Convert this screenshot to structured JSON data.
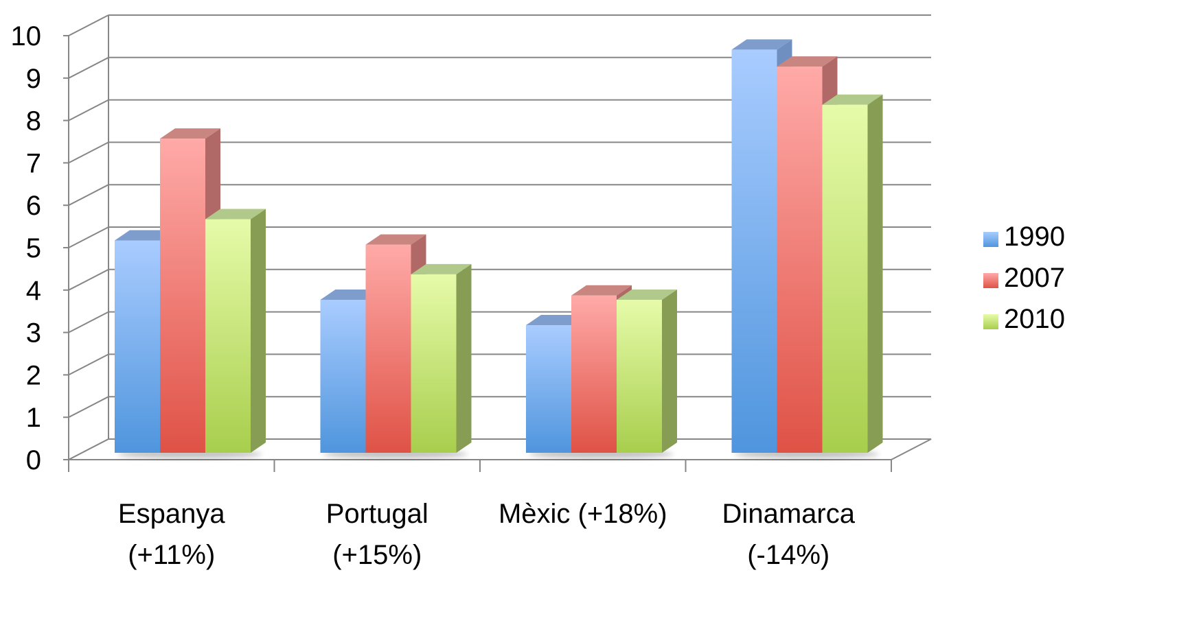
{
  "chart_data": {
    "type": "bar",
    "title": "",
    "xlabel": "",
    "ylabel": "",
    "ylim": [
      0,
      10
    ],
    "yticks": [
      "0",
      "1",
      "2",
      "3",
      "4",
      "5",
      "6",
      "7",
      "8",
      "9",
      "10"
    ],
    "categories": [
      [
        "Espanya",
        "(+11%)"
      ],
      [
        "Portugal",
        "(+15%)"
      ],
      [
        "Mèxic (+18%)"
      ],
      [
        "Dinamarca",
        "(-14%)"
      ]
    ],
    "series": [
      {
        "name": "1990",
        "values": [
          5.3,
          3.9,
          3.3,
          9.8
        ]
      },
      {
        "name": "2007",
        "values": [
          7.7,
          5.2,
          4.0,
          9.4
        ]
      },
      {
        "name": "2010",
        "values": [
          5.8,
          4.5,
          3.9,
          8.5
        ]
      }
    ],
    "grid": true,
    "legend": "right",
    "style": "3d-clustered"
  },
  "colors": {
    "1990": {
      "light": "#a9ccff",
      "dark": "#4f95dd",
      "top": "#7e9ccc",
      "side": "#6e8fbf"
    },
    "2007": {
      "light": "#ffaaa8",
      "dark": "#df5246",
      "top": "#c98580",
      "side": "#b06966"
    },
    "2010": {
      "light": "#e6fba9",
      "dark": "#a8ce4d",
      "top": "#b1c98a",
      "side": "#879d54"
    },
    "grid": "#868686",
    "axis": "#868686"
  }
}
